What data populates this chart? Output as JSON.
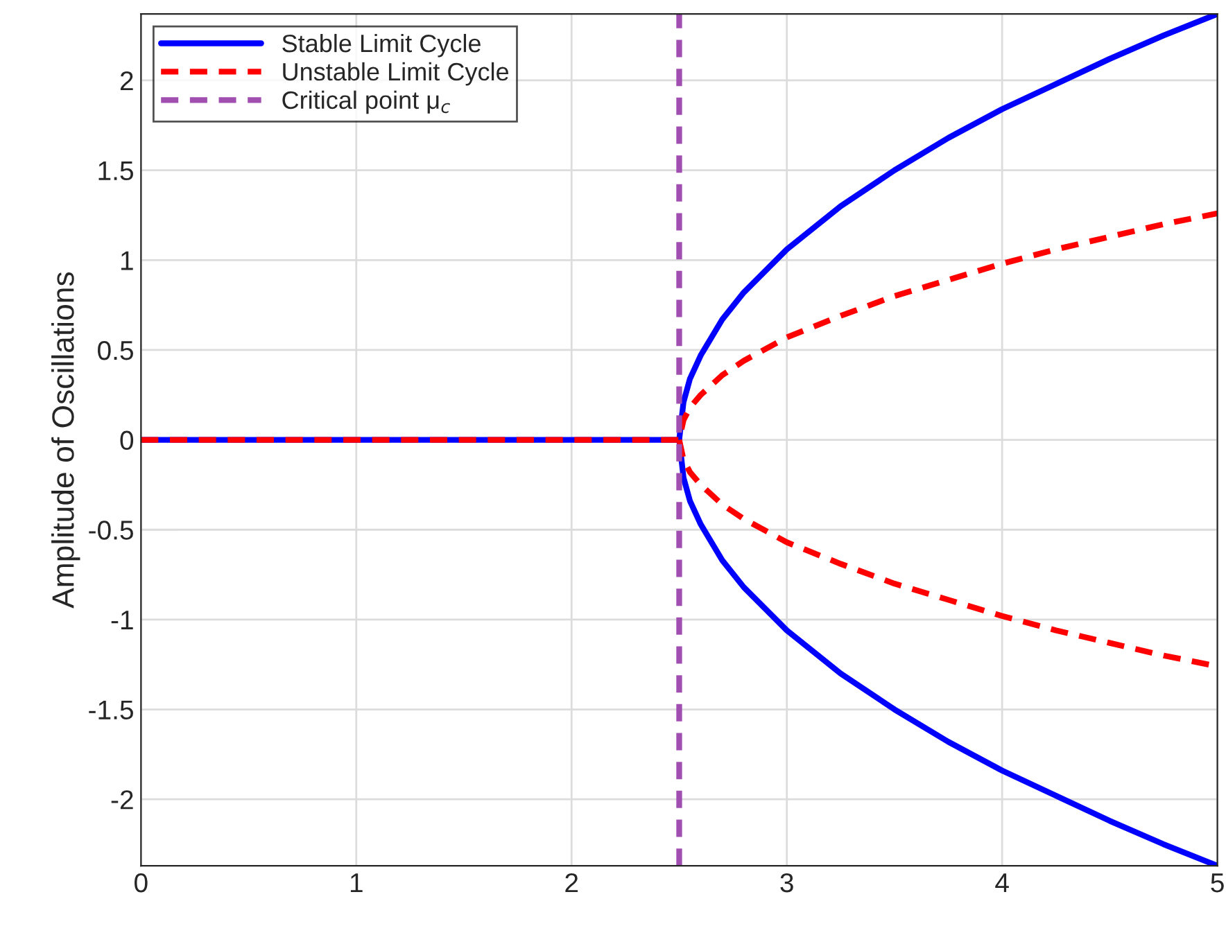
{
  "chart_data": {
    "type": "line",
    "ylabel": "Amplitude of Oscillations",
    "series": [
      {
        "name": "Stable Limit Cycle",
        "color": "#0000ff",
        "line_style": "solid",
        "x": [
          0,
          2.5,
          2.52,
          2.55,
          2.6,
          2.7,
          2.8,
          3.0,
          3.25,
          3.5,
          3.75,
          4.0,
          4.25,
          4.5,
          4.75,
          5.0
        ],
        "values": [
          0,
          0,
          0.21,
          0.34,
          0.47,
          0.67,
          0.82,
          1.06,
          1.3,
          1.5,
          1.68,
          1.84,
          1.98,
          2.12,
          2.25,
          2.37
        ]
      },
      {
        "color": "#0000ff",
        "line_style": "solid",
        "x": [
          2.5,
          2.52,
          2.55,
          2.6,
          2.7,
          2.8,
          3.0,
          3.25,
          3.5,
          3.75,
          4.0,
          4.25,
          4.5,
          4.75,
          5.0
        ],
        "values": [
          0,
          -0.21,
          -0.34,
          -0.47,
          -0.67,
          -0.82,
          -1.06,
          -1.3,
          -1.5,
          -1.68,
          -1.84,
          -1.98,
          -2.12,
          -2.25,
          -2.37
        ]
      },
      {
        "name": "Unstable Limit Cycle",
        "color": "#ff0000",
        "line_style": "dashed",
        "x": [
          0,
          2.5,
          2.52,
          2.55,
          2.6,
          2.7,
          2.8,
          3.0,
          3.25,
          3.5,
          3.75,
          4.0,
          4.25,
          4.5,
          4.75,
          5.0
        ],
        "values": [
          0,
          0,
          0.11,
          0.18,
          0.25,
          0.36,
          0.44,
          0.57,
          0.69,
          0.8,
          0.89,
          0.98,
          1.06,
          1.13,
          1.2,
          1.26
        ]
      },
      {
        "color": "#ff0000",
        "line_style": "dashed",
        "x": [
          2.5,
          2.52,
          2.55,
          2.6,
          2.7,
          2.8,
          3.0,
          3.25,
          3.5,
          3.75,
          4.0,
          4.25,
          4.5,
          4.75,
          5.0
        ],
        "values": [
          0,
          -0.11,
          -0.18,
          -0.25,
          -0.36,
          -0.44,
          -0.57,
          -0.69,
          -0.8,
          -0.89,
          -0.98,
          -1.06,
          -1.13,
          -1.2,
          -1.26
        ]
      },
      {
        "name": "Critical point μ$_{c}$",
        "color": "#a04fb0",
        "line_style": "dashed",
        "x": [
          2.5,
          2.5
        ],
        "values": [
          -2.37,
          2.37
        ]
      }
    ],
    "xlim": [
      0,
      5
    ],
    "xticks": [
      0,
      1,
      2,
      3,
      4,
      5
    ],
    "ylim": [
      -2.37,
      2.37
    ],
    "yticks": [
      -2,
      -1.5,
      -1,
      -0.5,
      0,
      0.5,
      1,
      1.5,
      2
    ],
    "grid": true,
    "legend": "top left",
    "marker": "none"
  }
}
